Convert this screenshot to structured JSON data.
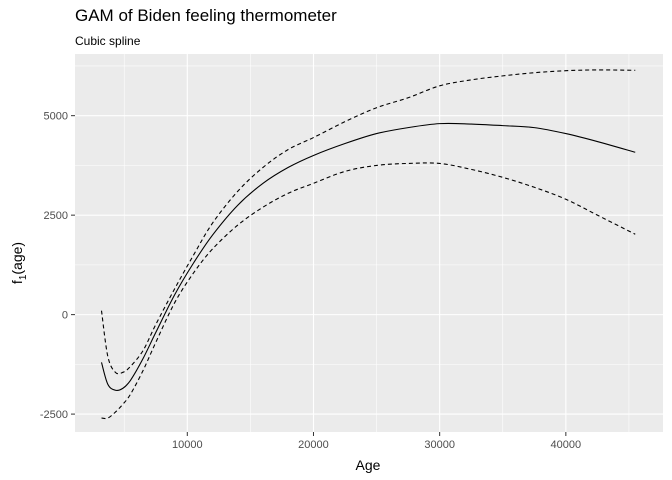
{
  "chart_data": {
    "type": "line",
    "title": "GAM of Biden feeling thermometer",
    "subtitle": "Cubic spline",
    "xlabel": "Age",
    "ylabel_main": "f",
    "ylabel_sub": "1",
    "ylabel_rest": "(age)",
    "xlim": [
      1100,
      47700
    ],
    "ylim": [
      -2950,
      6550
    ],
    "x_ticks": [
      10000,
      20000,
      30000,
      40000
    ],
    "x_tick_labels": [
      "10000",
      "20000",
      "30000",
      "40000"
    ],
    "y_ticks": [
      -2500,
      0,
      2500,
      5000
    ],
    "y_tick_labels": [
      "-2500",
      "0",
      "2500",
      "5000"
    ],
    "grid": true,
    "series": [
      {
        "role": "estimate",
        "linestyle": "solid",
        "x": [
          3200,
          3700,
          4300,
          4900,
          5500,
          6500,
          7500,
          9000,
          10500,
          12000,
          14000,
          16000,
          18000,
          20000,
          22500,
          25000,
          27500,
          30000,
          32500,
          35000,
          37500,
          40000,
          42500,
          45500
        ],
        "y": [
          -1200,
          -1750,
          -1900,
          -1850,
          -1650,
          -1100,
          -450,
          500,
          1300,
          2000,
          2750,
          3300,
          3700,
          4000,
          4300,
          4550,
          4700,
          4800,
          4790,
          4750,
          4700,
          4550,
          4350,
          4080
        ]
      },
      {
        "role": "upper band",
        "linestyle": "dashed",
        "x": [
          3200,
          3700,
          4300,
          4900,
          5500,
          6500,
          7500,
          9000,
          10500,
          12000,
          14000,
          16000,
          18000,
          20000,
          22500,
          25000,
          27500,
          30000,
          32500,
          35000,
          37500,
          40000,
          42500,
          45500
        ],
        "y": [
          100,
          -1050,
          -1450,
          -1450,
          -1300,
          -900,
          -250,
          650,
          1500,
          2300,
          3100,
          3700,
          4150,
          4450,
          4850,
          5200,
          5450,
          5750,
          5900,
          6000,
          6080,
          6130,
          6150,
          6140
        ]
      },
      {
        "role": "lower band",
        "linestyle": "dashed",
        "x": [
          3200,
          3700,
          4300,
          4900,
          5500,
          6500,
          7500,
          9000,
          10500,
          12000,
          14000,
          16000,
          18000,
          20000,
          22500,
          25000,
          27500,
          30000,
          32500,
          35000,
          37500,
          40000,
          42500,
          45500
        ],
        "y": [
          -2600,
          -2600,
          -2450,
          -2250,
          -2000,
          -1400,
          -700,
          300,
          1050,
          1650,
          2250,
          2700,
          3050,
          3300,
          3600,
          3750,
          3800,
          3800,
          3650,
          3450,
          3200,
          2900,
          2500,
          2020
        ]
      }
    ]
  }
}
